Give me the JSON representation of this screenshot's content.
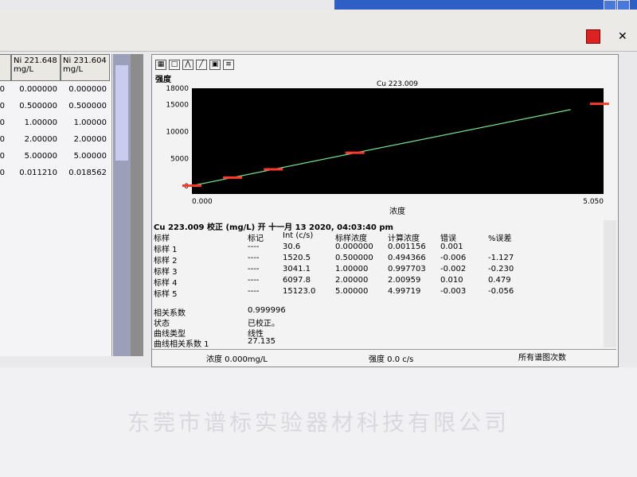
{
  "left_table": {
    "columns": [
      {
        "name": "Ni 221.648",
        "unit": "mg/L"
      },
      {
        "name": "Ni 231.604",
        "unit": "mg/L"
      }
    ],
    "rows": [
      [
        "0.000000",
        "0.000000"
      ],
      [
        "0.500000",
        "0.500000"
      ],
      [
        "1.00000",
        "1.00000"
      ],
      [
        "2.00000",
        "2.00000"
      ],
      [
        "5.00000",
        "5.00000"
      ],
      [
        "0.011210",
        "0.018562"
      ]
    ]
  },
  "chart_toolbar": {
    "icons": [
      "grid-icon",
      "window-icon",
      "peak-icon",
      "line-icon",
      "zoom-box-icon",
      "settings-icon"
    ]
  },
  "chart_data": {
    "type": "scatter",
    "title": "Cu 223.009",
    "ylabel": "强度",
    "xlabel": "浓度",
    "x": [
      0,
      0.5,
      1,
      2,
      5
    ],
    "y": [
      30.6,
      1520.5,
      3041.1,
      6097.8,
      15123.0
    ],
    "fit_line": true,
    "xlim": [
      0,
      5.05
    ],
    "ylim": [
      -1500,
      18000
    ],
    "x_ticks": [
      "0.000",
      "5.050"
    ],
    "y_ticks": [
      0,
      5000,
      10000,
      15000,
      18000
    ],
    "point_color": "#ff3a2a",
    "line_color": "#7be08a",
    "background": "#000000",
    "grid": false
  },
  "results": {
    "header": "Cu  223.009 校正 (mg/L) 开 十一月 13 2020, 04:03:40 pm",
    "columns": [
      "标样",
      "标记",
      "Int (c/s)",
      "标样浓度",
      "计算浓度",
      "错误",
      "%误差"
    ],
    "rows": [
      [
        "标样 1",
        "----",
        "30.6",
        "0.000000",
        "0.001156",
        "0.001",
        ""
      ],
      [
        "标样 2",
        "----",
        "1520.5",
        "0.500000",
        "0.494366",
        "-0.006",
        "-1.127"
      ],
      [
        "标样 3",
        "----",
        "3041.1",
        "1.00000",
        "0.997703",
        "-0.002",
        "-0.230"
      ],
      [
        "标样 4",
        "----",
        "6097.8",
        "2.00000",
        "2.00959",
        "0.010",
        "0.479"
      ],
      [
        "标样 5",
        "----",
        "15123.0",
        "5.00000",
        "4.99719",
        "-0.003",
        "-0.056"
      ]
    ],
    "summary": [
      [
        "相关系数",
        "0.999996"
      ],
      [
        "状态",
        "已校正。"
      ],
      [
        "曲线类型",
        "线性"
      ],
      [
        "曲线相关系数 1",
        "27.135"
      ]
    ]
  },
  "status": {
    "conc": "浓度  0.000mg/L",
    "intensity": "强度  0.0 c/s",
    "right": "所有谱图次数"
  },
  "watermark": "东莞市谱标实验器材科技有限公司"
}
